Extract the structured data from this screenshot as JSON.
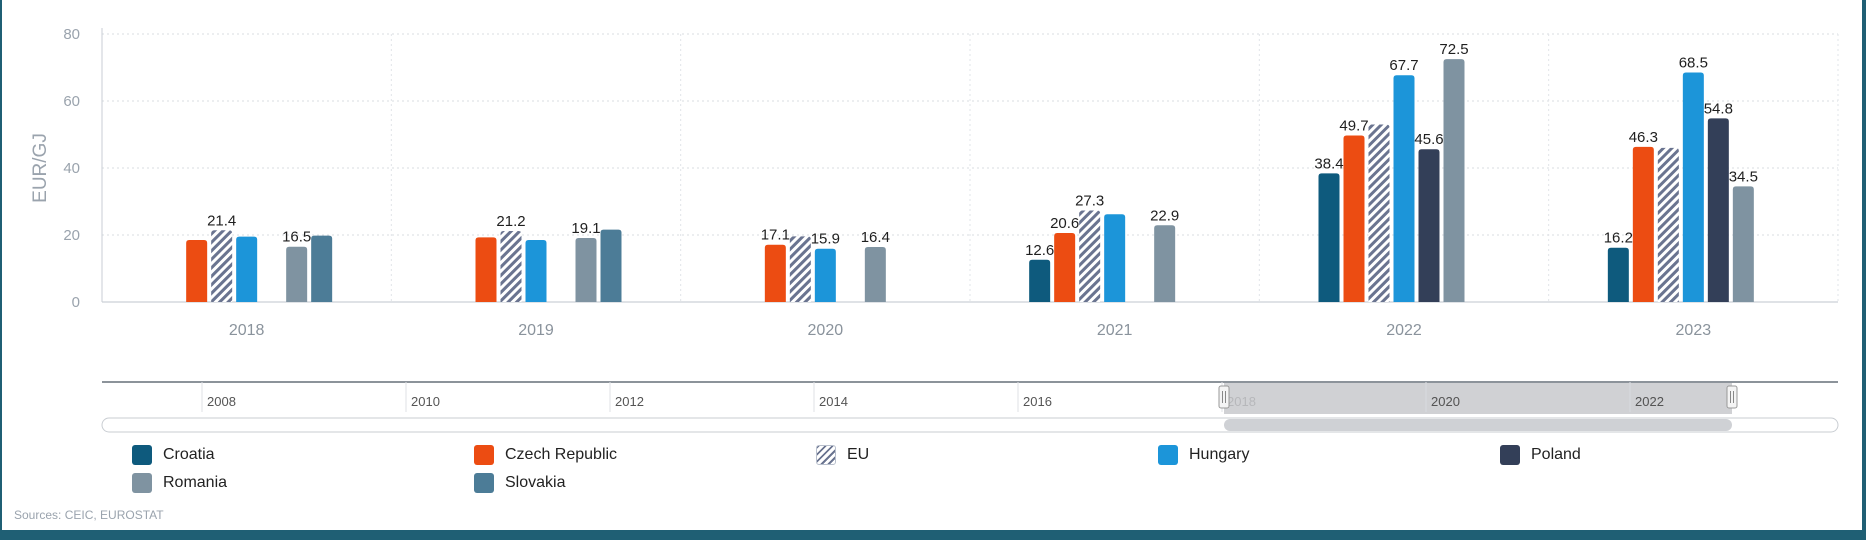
{
  "chart_data": {
    "type": "bar",
    "title": "",
    "ylabel": "EUR/GJ",
    "xlabel": "",
    "ylim": [
      0,
      80
    ],
    "yticks": [
      0,
      20,
      40,
      60,
      80
    ],
    "categories": [
      "2018",
      "2019",
      "2020",
      "2021",
      "2022",
      "2023"
    ],
    "series": [
      {
        "name": "Croatia",
        "color": "#0e5a7d",
        "pattern": "solid",
        "values": [
          null,
          null,
          null,
          12.6,
          38.4,
          16.2
        ],
        "labels": [
          "",
          "",
          "",
          "12.6",
          "38.4",
          "16.2"
        ]
      },
      {
        "name": "Czech Republic",
        "color": "#ec4c12",
        "pattern": "solid",
        "values": [
          18.5,
          19.3,
          17.1,
          20.6,
          49.7,
          46.3
        ],
        "labels": [
          "",
          "",
          "17.1",
          "20.6",
          "49.7",
          "46.3"
        ]
      },
      {
        "name": "EU",
        "color": "#6a7490",
        "pattern": "hatch",
        "values": [
          21.4,
          21.2,
          19.6,
          27.3,
          53.0,
          46.0
        ],
        "labels": [
          "21.4",
          "21.2",
          "",
          "27.3",
          "",
          ""
        ]
      },
      {
        "name": "Hungary",
        "color": "#1c95d9",
        "pattern": "solid",
        "values": [
          19.5,
          18.5,
          15.9,
          26.2,
          67.7,
          68.5
        ],
        "labels": [
          "",
          "",
          "15.9",
          "",
          "67.7",
          "68.5"
        ]
      },
      {
        "name": "Poland",
        "color": "#333f58",
        "pattern": "solid",
        "values": [
          null,
          null,
          null,
          null,
          45.6,
          54.8
        ],
        "labels": [
          "",
          "",
          "",
          "",
          "45.6",
          "54.8"
        ]
      },
      {
        "name": "Romania",
        "color": "#7f93a1",
        "pattern": "solid",
        "values": [
          16.5,
          19.1,
          16.4,
          22.9,
          72.5,
          34.5
        ],
        "labels": [
          "16.5",
          "19.1",
          "16.4",
          "22.9",
          "72.5",
          "34.5"
        ]
      },
      {
        "name": "Slovakia",
        "color": "#4c7c97",
        "pattern": "solid",
        "values": [
          19.8,
          21.6,
          null,
          null,
          null,
          null
        ],
        "labels": [
          "",
          "",
          "",
          "",
          "",
          ""
        ]
      }
    ],
    "legend_position": "bottom",
    "navigator": {
      "labels": [
        "2008",
        "2010",
        "2012",
        "2014",
        "2016",
        "2018",
        "2020",
        "2022"
      ],
      "selected_range": [
        "2018",
        "2023"
      ]
    }
  },
  "sources": "Sources: CEIC, EUROSTAT"
}
